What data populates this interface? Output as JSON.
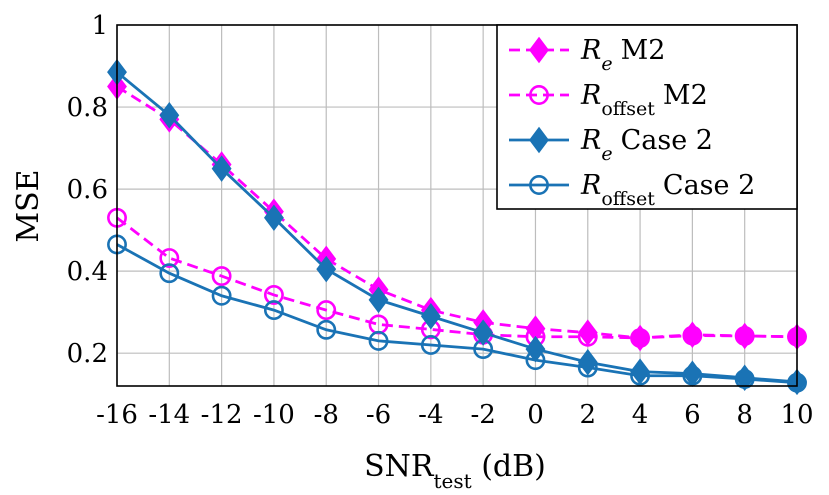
{
  "chart_data": {
    "type": "line",
    "x": [
      -16,
      -14,
      -12,
      -10,
      -8,
      -6,
      -4,
      -2,
      0,
      2,
      4,
      6,
      8,
      10
    ],
    "x_tick_labels": [
      "-16",
      "-14",
      "-12",
      "-10",
      "-8",
      "-6",
      "-4",
      "-2",
      "0",
      "2",
      "4",
      "6",
      "8",
      "10"
    ],
    "y_ticks": [
      0.2,
      0.4,
      0.6,
      0.8,
      1
    ],
    "y_tick_labels": [
      "0.2",
      "0.4",
      "0.6",
      "0.8",
      "1"
    ],
    "xlim": [
      -16,
      10
    ],
    "ylim": [
      0.12,
      1
    ],
    "xlabel": {
      "main": "SNR",
      "sub": "test",
      "suffix": " (dB)"
    },
    "ylabel": "MSE",
    "grid": true,
    "legend_position": "top-right",
    "series": [
      {
        "legend": {
          "symbol": "R",
          "sub": "e",
          "suffix": "M2"
        },
        "color": "#ff00ff",
        "dashed": true,
        "marker": "diamond-filled",
        "values": [
          0.85,
          0.77,
          0.66,
          0.545,
          0.43,
          0.355,
          0.305,
          0.275,
          0.26,
          0.25,
          0.237,
          0.245,
          0.242,
          0.24
        ]
      },
      {
        "legend": {
          "symbol": "R",
          "sub": "offset",
          "suffix": "M2"
        },
        "color": "#ff00ff",
        "dashed": true,
        "marker": "circle-open",
        "values": [
          0.53,
          0.432,
          0.388,
          0.342,
          0.305,
          0.27,
          0.258,
          0.245,
          0.24,
          0.24,
          0.237,
          0.243,
          0.242,
          0.24
        ]
      },
      {
        "legend": {
          "symbol": "R",
          "sub": "e",
          "suffix": "Case 2"
        },
        "color": "#1a73b5",
        "dashed": false,
        "marker": "diamond-filled",
        "values": [
          0.885,
          0.78,
          0.65,
          0.53,
          0.405,
          0.33,
          0.29,
          0.25,
          0.21,
          0.178,
          0.155,
          0.15,
          0.14,
          0.13
        ]
      },
      {
        "legend": {
          "symbol": "R",
          "sub": "offset",
          "suffix": "Case 2"
        },
        "color": "#1a73b5",
        "dashed": false,
        "marker": "circle-open",
        "values": [
          0.465,
          0.395,
          0.34,
          0.305,
          0.257,
          0.23,
          0.22,
          0.21,
          0.183,
          0.165,
          0.145,
          0.145,
          0.137,
          0.128
        ]
      }
    ]
  }
}
